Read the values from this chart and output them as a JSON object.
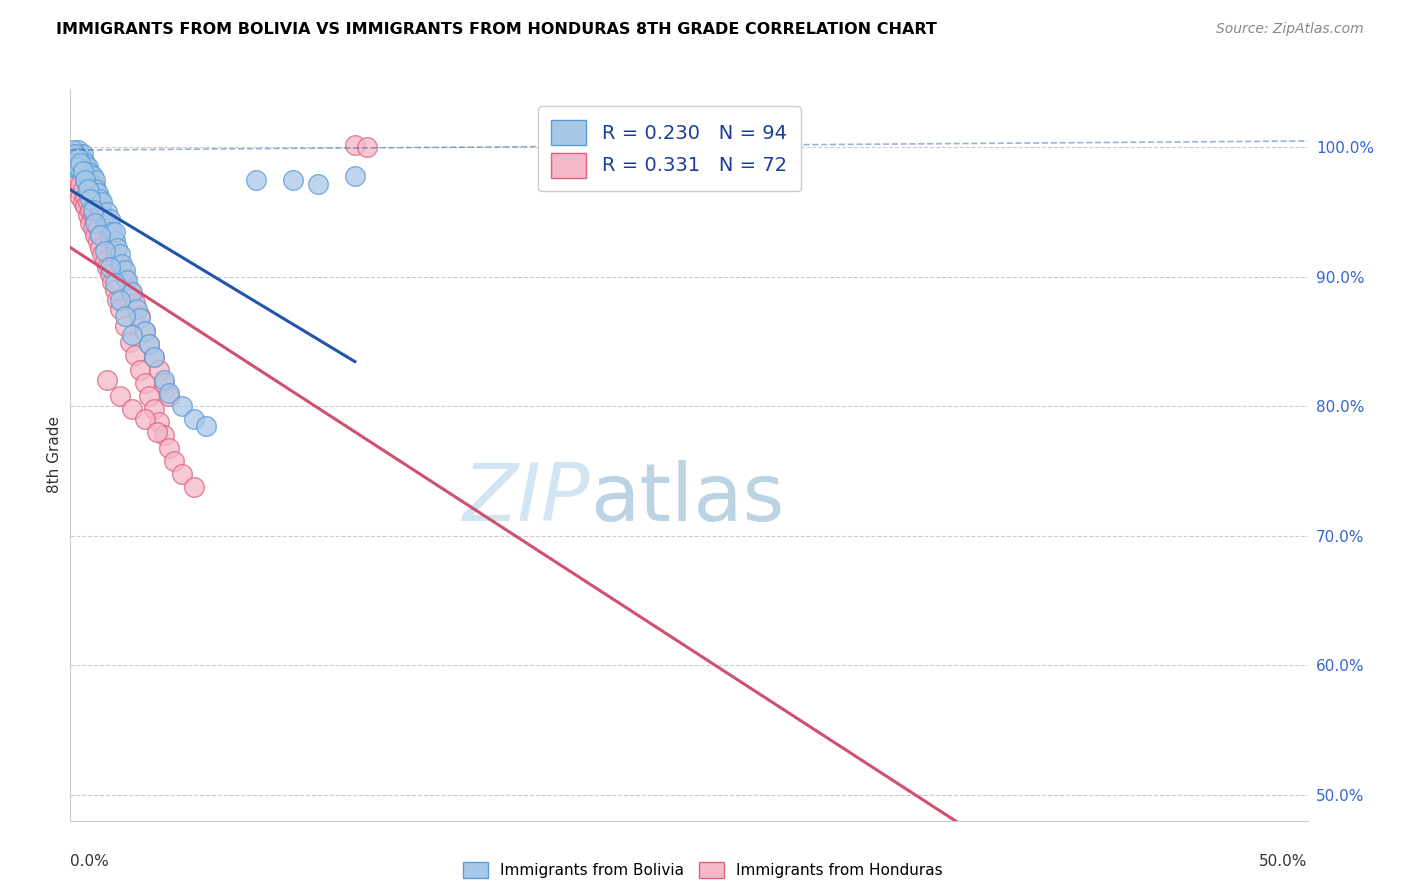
{
  "title": "IMMIGRANTS FROM BOLIVIA VS IMMIGRANTS FROM HONDURAS 8TH GRADE CORRELATION CHART",
  "source": "Source: ZipAtlas.com",
  "ylabel": "8th Grade",
  "ytick_vals": [
    0.5,
    0.6,
    0.7,
    0.8,
    0.9,
    1.0
  ],
  "ytick_labels": [
    "50.0%",
    "60.0%",
    "70.0%",
    "80.0%",
    "90.0%",
    "100.0%"
  ],
  "xlim": [
    0.0,
    0.5
  ],
  "ylim": [
    0.48,
    1.045
  ],
  "bolivia_color": "#a8c8e8",
  "bolivia_edge": "#5b9bd5",
  "honduras_color": "#f4b8c8",
  "honduras_edge": "#e06080",
  "bolivia_line_color": "#2255aa",
  "honduras_line_color": "#d05070",
  "bolivia_R": 0.23,
  "bolivia_N": 94,
  "honduras_R": 0.331,
  "honduras_N": 72,
  "legend_label_bolivia": "Immigrants from Bolivia",
  "legend_label_honduras": "Immigrants from Honduras",
  "bolivia_x": [
    0.001,
    0.001,
    0.001,
    0.002,
    0.002,
    0.002,
    0.002,
    0.003,
    0.003,
    0.003,
    0.003,
    0.003,
    0.004,
    0.004,
    0.004,
    0.004,
    0.004,
    0.005,
    0.005,
    0.005,
    0.005,
    0.005,
    0.006,
    0.006,
    0.006,
    0.006,
    0.007,
    0.007,
    0.007,
    0.007,
    0.008,
    0.008,
    0.008,
    0.009,
    0.009,
    0.009,
    0.01,
    0.01,
    0.01,
    0.01,
    0.011,
    0.011,
    0.012,
    0.012,
    0.013,
    0.013,
    0.014,
    0.015,
    0.015,
    0.016,
    0.016,
    0.017,
    0.018,
    0.018,
    0.019,
    0.02,
    0.021,
    0.022,
    0.023,
    0.025,
    0.027,
    0.028,
    0.03,
    0.032,
    0.034,
    0.038,
    0.04,
    0.045,
    0.05,
    0.055,
    0.001,
    0.001,
    0.002,
    0.002,
    0.003,
    0.003,
    0.004,
    0.005,
    0.006,
    0.007,
    0.008,
    0.009,
    0.01,
    0.012,
    0.014,
    0.016,
    0.018,
    0.02,
    0.022,
    0.025,
    0.075,
    0.09,
    0.1,
    0.115
  ],
  "bolivia_y": [
    0.99,
    0.985,
    0.995,
    0.988,
    0.992,
    0.985,
    0.995,
    0.99,
    0.988,
    0.985,
    0.992,
    0.998,
    0.985,
    0.99,
    0.988,
    0.995,
    0.992,
    0.985,
    0.988,
    0.982,
    0.99,
    0.995,
    0.98,
    0.985,
    0.988,
    0.975,
    0.982,
    0.978,
    0.985,
    0.97,
    0.975,
    0.98,
    0.968,
    0.972,
    0.978,
    0.965,
    0.97,
    0.975,
    0.968,
    0.96,
    0.958,
    0.965,
    0.955,
    0.96,
    0.95,
    0.958,
    0.945,
    0.94,
    0.95,
    0.938,
    0.945,
    0.935,
    0.928,
    0.935,
    0.922,
    0.918,
    0.91,
    0.905,
    0.898,
    0.888,
    0.875,
    0.868,
    0.858,
    0.848,
    0.838,
    0.82,
    0.81,
    0.8,
    0.79,
    0.785,
    0.998,
    0.992,
    0.995,
    0.988,
    0.992,
    0.985,
    0.988,
    0.982,
    0.975,
    0.968,
    0.96,
    0.952,
    0.942,
    0.932,
    0.92,
    0.908,
    0.895,
    0.882,
    0.87,
    0.855,
    0.975,
    0.975,
    0.972,
    0.978
  ],
  "honduras_x": [
    0.002,
    0.003,
    0.003,
    0.004,
    0.004,
    0.005,
    0.005,
    0.006,
    0.006,
    0.007,
    0.007,
    0.008,
    0.008,
    0.009,
    0.009,
    0.01,
    0.01,
    0.011,
    0.011,
    0.012,
    0.012,
    0.013,
    0.014,
    0.015,
    0.016,
    0.017,
    0.018,
    0.019,
    0.02,
    0.022,
    0.024,
    0.026,
    0.028,
    0.03,
    0.032,
    0.034,
    0.036,
    0.038,
    0.04,
    0.042,
    0.045,
    0.05,
    0.003,
    0.004,
    0.005,
    0.006,
    0.007,
    0.008,
    0.009,
    0.01,
    0.012,
    0.014,
    0.016,
    0.018,
    0.02,
    0.022,
    0.024,
    0.026,
    0.028,
    0.03,
    0.032,
    0.034,
    0.036,
    0.038,
    0.04,
    0.015,
    0.02,
    0.025,
    0.03,
    0.035,
    0.115,
    0.12
  ],
  "honduras_y": [
    0.978,
    0.975,
    0.968,
    0.972,
    0.962,
    0.968,
    0.958,
    0.962,
    0.955,
    0.958,
    0.948,
    0.952,
    0.942,
    0.948,
    0.938,
    0.945,
    0.932,
    0.938,
    0.928,
    0.932,
    0.922,
    0.918,
    0.912,
    0.908,
    0.902,
    0.896,
    0.89,
    0.882,
    0.875,
    0.862,
    0.85,
    0.84,
    0.828,
    0.818,
    0.808,
    0.798,
    0.788,
    0.778,
    0.768,
    0.758,
    0.748,
    0.738,
    0.99,
    0.985,
    0.982,
    0.978,
    0.975,
    0.97,
    0.965,
    0.96,
    0.95,
    0.94,
    0.93,
    0.92,
    0.91,
    0.9,
    0.89,
    0.88,
    0.87,
    0.858,
    0.848,
    0.838,
    0.828,
    0.818,
    0.808,
    0.82,
    0.808,
    0.798,
    0.79,
    0.78,
    1.002,
    1.0
  ],
  "bolivia_line_x0": 0.0,
  "bolivia_line_x1": 0.115,
  "honduras_line_x0": 0.0,
  "honduras_line_x1": 0.5,
  "dashed_line_x0": 0.0,
  "dashed_line_x1": 0.5,
  "dashed_line_y0": 0.998,
  "dashed_line_y1": 1.005
}
